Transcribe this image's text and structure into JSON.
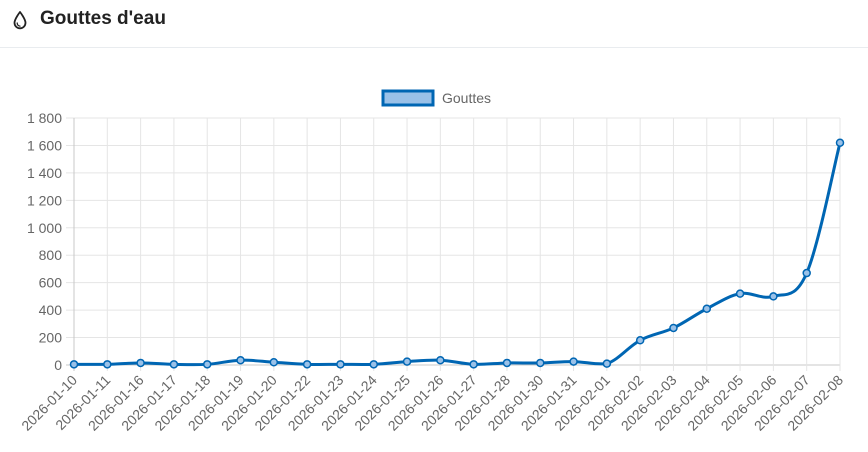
{
  "header": {
    "title": "Gouttes d'eau",
    "icon": "droplet-icon"
  },
  "chart_data": {
    "type": "line",
    "title": "",
    "xlabel": "",
    "ylabel": "",
    "legend": "top-center",
    "grid": true,
    "ylim": [
      0,
      1800
    ],
    "yticks": [
      "0",
      "200",
      "400",
      "600",
      "800",
      "1 000",
      "1 200",
      "1 400",
      "1 600",
      "1 800"
    ],
    "categories": [
      "2026-01-10",
      "2026-01-11",
      "2026-01-16",
      "2026-01-17",
      "2026-01-18",
      "2026-01-19",
      "2026-01-20",
      "2026-01-22",
      "2026-01-23",
      "2026-01-24",
      "2026-01-25",
      "2026-01-26",
      "2026-01-27",
      "2026-01-28",
      "2026-01-30",
      "2026-01-31",
      "2026-02-01",
      "2026-02-02",
      "2026-02-03",
      "2026-02-04",
      "2026-02-05",
      "2026-02-06",
      "2026-02-07",
      "2026-02-08"
    ],
    "series": [
      {
        "name": "Gouttes",
        "color": "#0066b3",
        "fill": "#9ac1e8",
        "values": [
          5,
          5,
          15,
          5,
          5,
          35,
          20,
          5,
          5,
          5,
          25,
          35,
          5,
          15,
          15,
          25,
          10,
          180,
          270,
          410,
          520,
          500,
          670,
          1620
        ]
      }
    ]
  }
}
